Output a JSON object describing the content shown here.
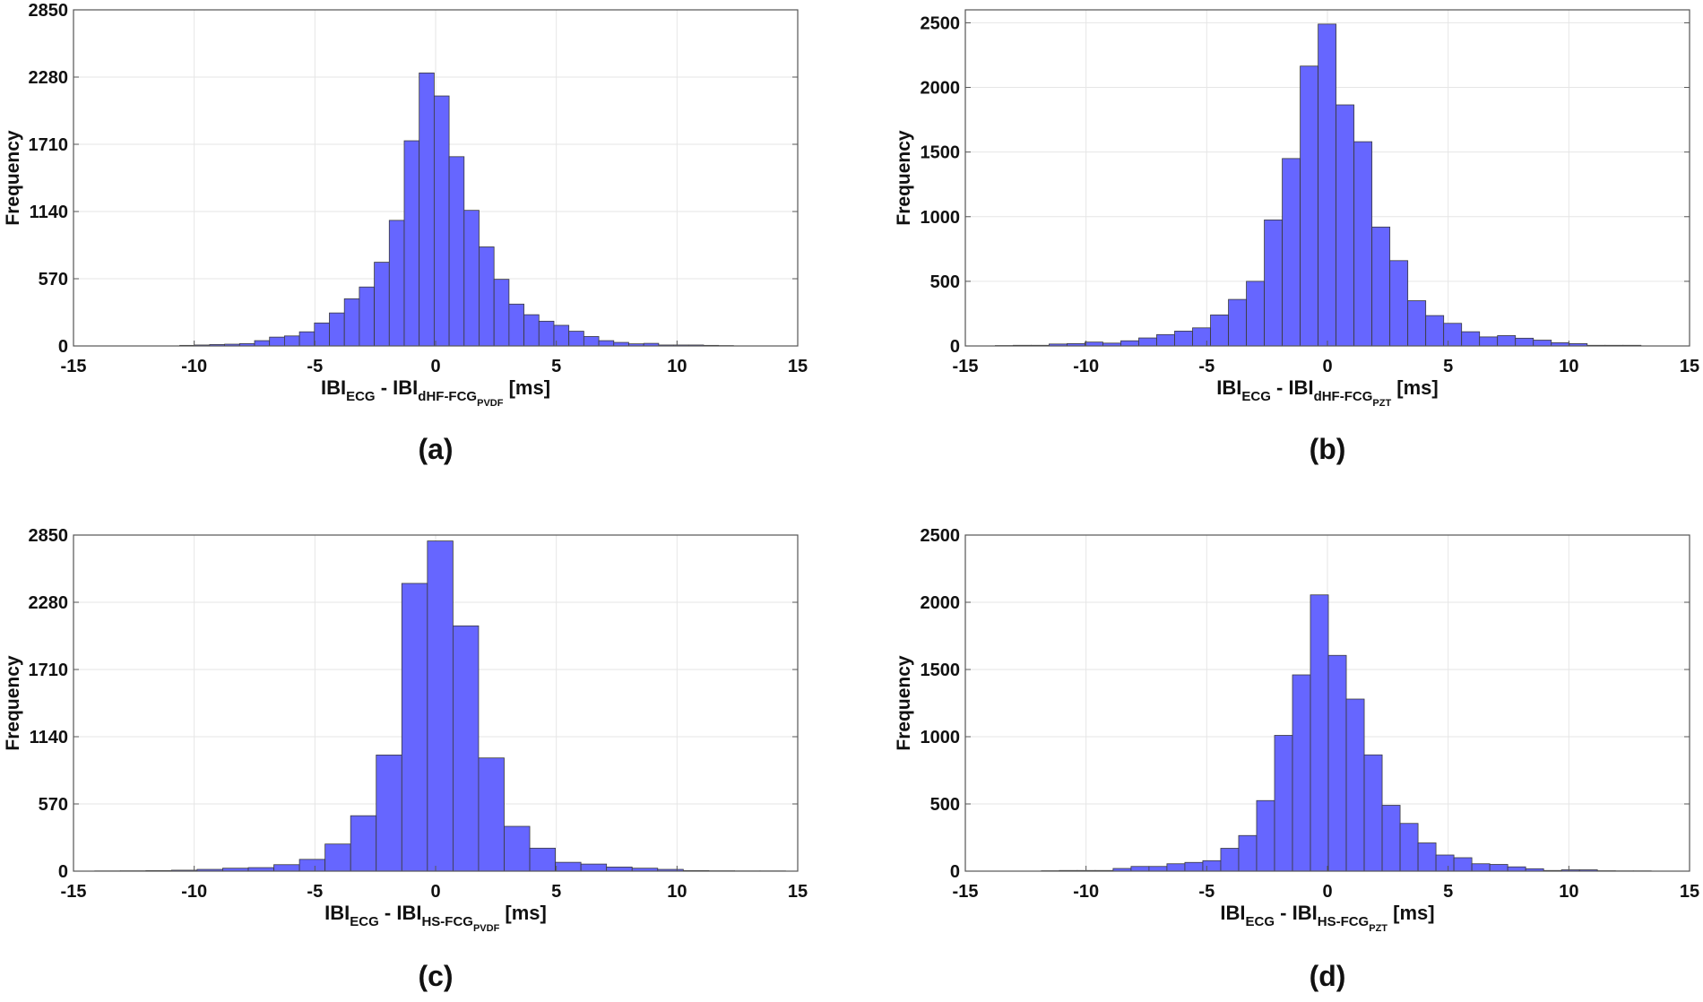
{
  "bar_color": "#6666ff",
  "bar_edge_color": "#3a3a3a",
  "chart_data": [
    {
      "type": "bar",
      "panel_label": "(a)",
      "ylabel": "Frequency",
      "xlabel": {
        "a": "IBI",
        "a_sub": "ECG",
        "b": " - IBI",
        "b_sub": "dHF-FCG",
        "b_subsub": "PVDF",
        "unit": " [ms]"
      },
      "xlim": [
        -15,
        15
      ],
      "ylim": [
        0,
        2850
      ],
      "xticks": [
        -15,
        -10,
        -5,
        0,
        5,
        10,
        15
      ],
      "yticks": [
        0,
        570,
        1140,
        1710,
        2280,
        2850
      ],
      "grid": true,
      "bin_start": -10.6,
      "bin_width": 0.62,
      "values": [
        5,
        8,
        12,
        15,
        20,
        45,
        75,
        85,
        120,
        195,
        280,
        400,
        500,
        710,
        1065,
        1740,
        2315,
        2120,
        1605,
        1150,
        840,
        565,
        355,
        265,
        210,
        175,
        125,
        80,
        45,
        30,
        18,
        22,
        8,
        8,
        8,
        5,
        3
      ]
    },
    {
      "type": "bar",
      "panel_label": "(b)",
      "ylabel": "Frequency",
      "xlabel": {
        "a": "IBI",
        "a_sub": "ECG",
        "b": " - IBI",
        "b_sub": "dHF-FCG",
        "b_subsub": "PZT",
        "unit": " [ms]"
      },
      "xlim": [
        -15,
        15
      ],
      "ylim": [
        0,
        2600
      ],
      "xticks": [
        -15,
        -10,
        -5,
        0,
        5,
        10,
        15
      ],
      "yticks": [
        0,
        500,
        1000,
        1500,
        2000,
        2500
      ],
      "grid": true,
      "bin_start": -13.76,
      "bin_width": 0.743,
      "values": [
        3,
        5,
        5,
        15,
        18,
        30,
        22,
        40,
        62,
        88,
        115,
        140,
        240,
        360,
        500,
        975,
        1450,
        2165,
        2490,
        1865,
        1580,
        920,
        660,
        350,
        235,
        175,
        110,
        70,
        80,
        60,
        45,
        25,
        18,
        5,
        5,
        5
      ]
    },
    {
      "type": "bar",
      "panel_label": "(c)",
      "ylabel": "Frequency",
      "xlabel": {
        "a": "IBI",
        "a_sub": "ECG",
        "b": " - IBI",
        "b_sub": "HS-FCG",
        "b_subsub": "PVDF",
        "unit": " [ms]"
      },
      "xlim": [
        -15,
        15
      ],
      "ylim": [
        0,
        2850
      ],
      "xticks": [
        -15,
        -10,
        -5,
        0,
        5,
        10,
        15
      ],
      "yticks": [
        0,
        570,
        1140,
        1710,
        2280,
        2850
      ],
      "grid": true,
      "bin_start": -14.12,
      "bin_width": 1.06,
      "values": [
        2,
        3,
        5,
        8,
        15,
        25,
        30,
        55,
        100,
        230,
        470,
        985,
        2440,
        2800,
        2080,
        960,
        380,
        195,
        75,
        60,
        35,
        25,
        15,
        5,
        3,
        2,
        2
      ]
    },
    {
      "type": "bar",
      "panel_label": "(d)",
      "ylabel": "Frequency",
      "xlabel": {
        "a": "IBI",
        "a_sub": "ECG",
        "b": " - IBI",
        "b_sub": "HS-FCG",
        "b_subsub": "PZT",
        "unit": " [ms]"
      },
      "xlim": [
        -15,
        15
      ],
      "ylim": [
        0,
        2500
      ],
      "xticks": [
        -15,
        -10,
        -5,
        0,
        5,
        10,
        15
      ],
      "yticks": [
        0,
        500,
        1000,
        1500,
        2000,
        2500
      ],
      "grid": true,
      "bin_start": -11.85,
      "bin_width": 0.743,
      "values": [
        3,
        5,
        5,
        5,
        20,
        35,
        35,
        55,
        65,
        78,
        170,
        265,
        525,
        1010,
        1460,
        2055,
        1605,
        1280,
        865,
        490,
        355,
        210,
        120,
        100,
        55,
        50,
        32,
        18,
        5,
        10,
        10,
        3,
        2,
        2
      ]
    }
  ]
}
